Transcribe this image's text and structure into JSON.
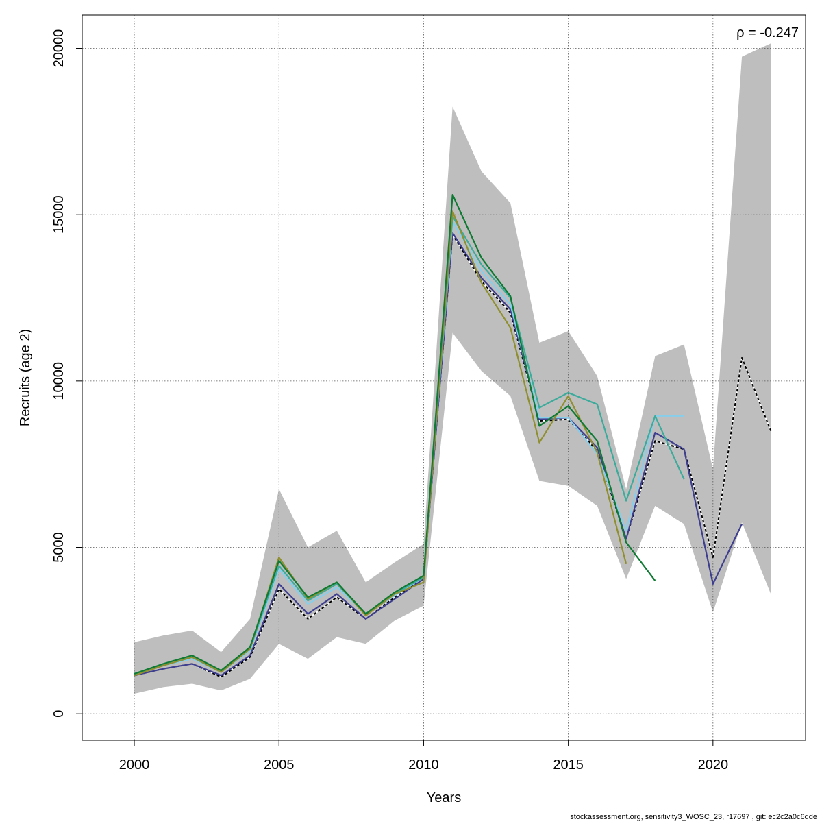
{
  "chart_data": {
    "type": "line",
    "xlabel": "Years",
    "ylabel": "Recruits (age 2)",
    "xlim": [
      1998.2,
      2023.2
    ],
    "ylim": [
      -800,
      21000
    ],
    "x_ticks": [
      2000,
      2005,
      2010,
      2015,
      2020
    ],
    "y_ticks": [
      0,
      5000,
      10000,
      15000,
      20000
    ],
    "grid": true,
    "annotation": {
      "symbol": "ρ",
      "text": " = -0.247",
      "position": "top-right"
    },
    "footer": "stockassessment.org, sensitivity3_WOSC_23, r17697 , git: ec2c2a0c6dde",
    "band": {
      "color": "#bebebe",
      "x": [
        2000,
        2001,
        2002,
        2003,
        2004,
        2005,
        2006,
        2007,
        2008,
        2009,
        2010,
        2011,
        2012,
        2013,
        2014,
        2015,
        2016,
        2017,
        2018,
        2019,
        2020,
        2021,
        2022
      ],
      "lower": [
        600,
        800,
        900,
        700,
        1050,
        2100,
        1650,
        2300,
        2100,
        2800,
        3250,
        11450,
        10300,
        9550,
        7000,
        6850,
        6250,
        4050,
        6250,
        5700,
        3050,
        5750,
        3600
      ],
      "upper": [
        2150,
        2350,
        2500,
        1850,
        2850,
        6750,
        5000,
        5500,
        3950,
        4550,
        5100,
        18250,
        16300,
        15350,
        11150,
        11500,
        10150,
        6750,
        10750,
        11100,
        7350,
        19750,
        20150
      ]
    },
    "series": [
      {
        "color": "#000000",
        "dashed": true,
        "x": [
          2000,
          2001,
          2002,
          2003,
          2004,
          2005,
          2006,
          2007,
          2008,
          2009,
          2010,
          2011,
          2012,
          2013,
          2014,
          2015,
          2016,
          2017,
          2018,
          2019,
          2020,
          2021,
          2022
        ],
        "values": [
          1150,
          1350,
          1500,
          1100,
          1700,
          3750,
          2850,
          3500,
          2850,
          3500,
          4050,
          14400,
          13000,
          12050,
          8800,
          8850,
          7900,
          5250,
          8200,
          7950,
          4700,
          10700,
          8500
        ]
      },
      {
        "color": "#3f3f8f",
        "dashed": false,
        "x": [
          2000,
          2001,
          2002,
          2003,
          2004,
          2005,
          2006,
          2007,
          2008,
          2009,
          2010,
          2011,
          2012,
          2013,
          2014,
          2015,
          2016,
          2017,
          2018,
          2019,
          2020,
          2021
        ],
        "values": [
          1150,
          1350,
          1500,
          1150,
          1750,
          3900,
          3000,
          3600,
          2850,
          3450,
          4050,
          14450,
          13100,
          12150,
          8850,
          8900,
          8000,
          5250,
          8450,
          7950,
          3900,
          5700
        ]
      },
      {
        "color": "#87ceeb",
        "dashed": false,
        "x": [
          2000,
          2001,
          2002,
          2003,
          2004,
          2005,
          2006,
          2007,
          2008,
          2009,
          2010,
          2011,
          2012,
          2013,
          2014,
          2015,
          2016,
          2017,
          2018,
          2019
        ],
        "values": [
          1200,
          1450,
          1650,
          1250,
          1900,
          4350,
          3300,
          3800,
          3000,
          3550,
          4100,
          14800,
          13300,
          12300,
          8900,
          8900,
          7800,
          5500,
          8950,
          8950
        ]
      },
      {
        "color": "#3cab9b",
        "dashed": false,
        "x": [
          2000,
          2001,
          2002,
          2003,
          2004,
          2005,
          2006,
          2007,
          2008,
          2009,
          2010,
          2011,
          2012,
          2013,
          2014,
          2015,
          2016,
          2017,
          2018,
          2019
        ],
        "values": [
          1200,
          1450,
          1700,
          1250,
          1950,
          4450,
          3400,
          3900,
          3000,
          3600,
          4100,
          14950,
          13500,
          12500,
          9200,
          9650,
          9300,
          6400,
          8950,
          7050
        ]
      },
      {
        "color": "#8f8f2f",
        "dashed": false,
        "x": [
          2000,
          2001,
          2002,
          2003,
          2004,
          2005,
          2006,
          2007,
          2008,
          2009,
          2010,
          2011,
          2012,
          2013,
          2014,
          2015,
          2016,
          2017
        ],
        "values": [
          1150,
          1450,
          1700,
          1250,
          1950,
          4700,
          3450,
          3950,
          2950,
          3600,
          3950,
          15100,
          12950,
          11600,
          8150,
          9550,
          7850,
          4500
        ]
      },
      {
        "color": "#0f7a33",
        "dashed": false,
        "x": [
          2000,
          2001,
          2002,
          2003,
          2004,
          2005,
          2006,
          2007,
          2008,
          2009,
          2010,
          2011,
          2012,
          2013,
          2014,
          2015,
          2016,
          2017,
          2018
        ],
        "values": [
          1200,
          1500,
          1750,
          1300,
          2000,
          4600,
          3500,
          3950,
          3000,
          3650,
          4150,
          15600,
          13700,
          12550,
          8650,
          9250,
          8200,
          5150,
          4000
        ]
      }
    ]
  }
}
